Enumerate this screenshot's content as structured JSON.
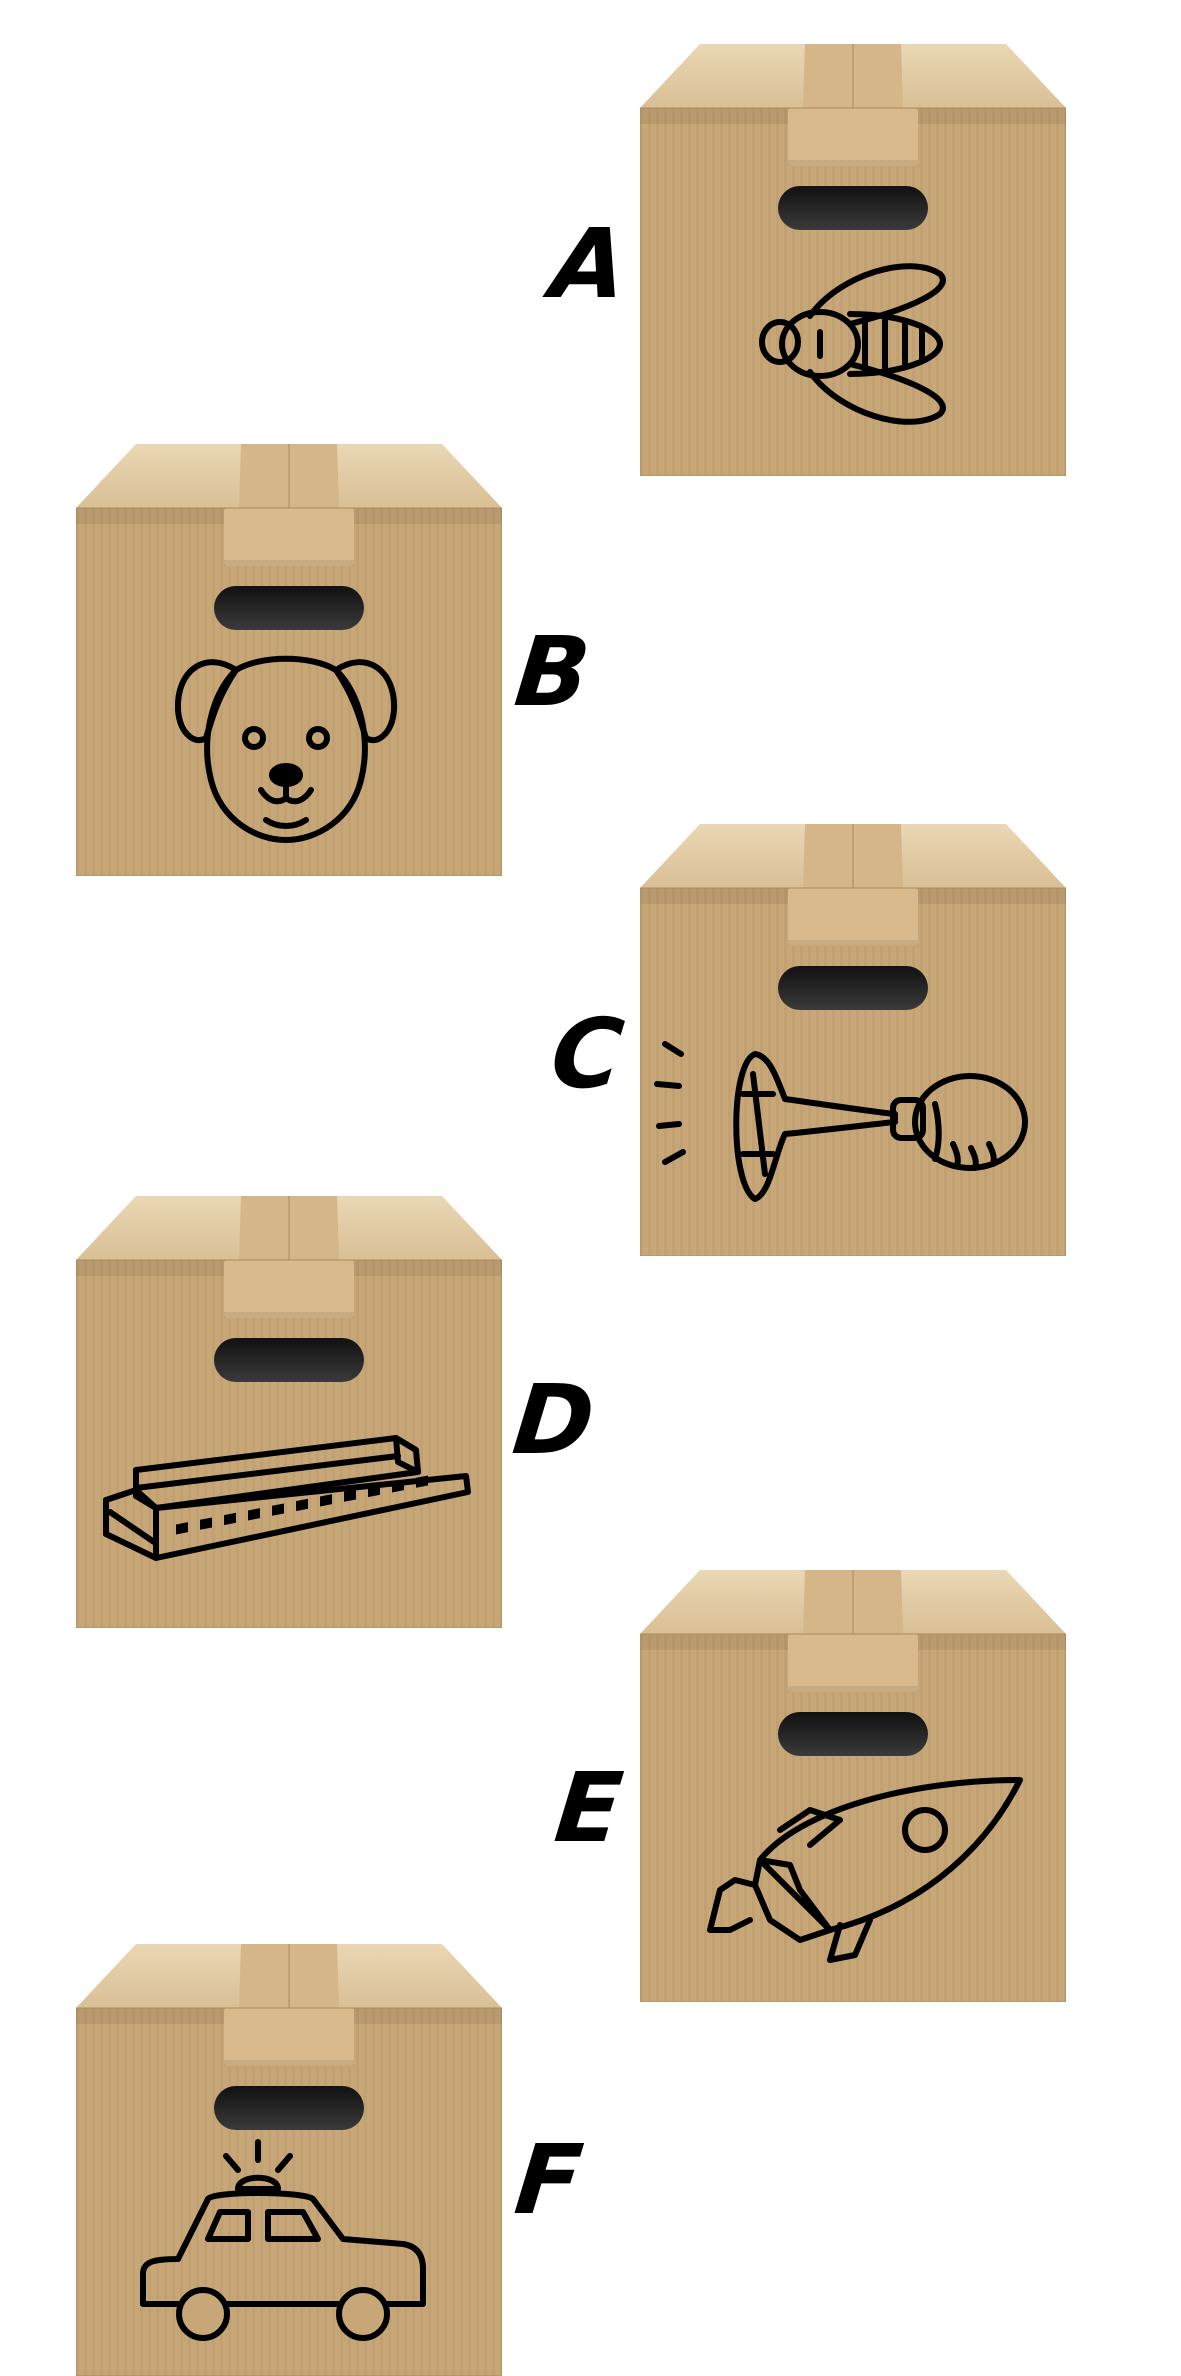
{
  "boxes": [
    {
      "letter": "A",
      "icon": "fly-icon"
    },
    {
      "letter": "B",
      "icon": "dog-icon"
    },
    {
      "letter": "C",
      "icon": "horn-icon"
    },
    {
      "letter": "D",
      "icon": "harmonica-icon"
    },
    {
      "letter": "E",
      "icon": "rocket-icon"
    },
    {
      "letter": "F",
      "icon": "police-car-icon"
    }
  ],
  "colors": {
    "cardboard": "#c9aa7c",
    "cardboard_dark": "#b8976a",
    "lid": "#e3cba4",
    "tape": "#d9bd91",
    "handle": "#2a2a2a",
    "ink": "#000000"
  }
}
